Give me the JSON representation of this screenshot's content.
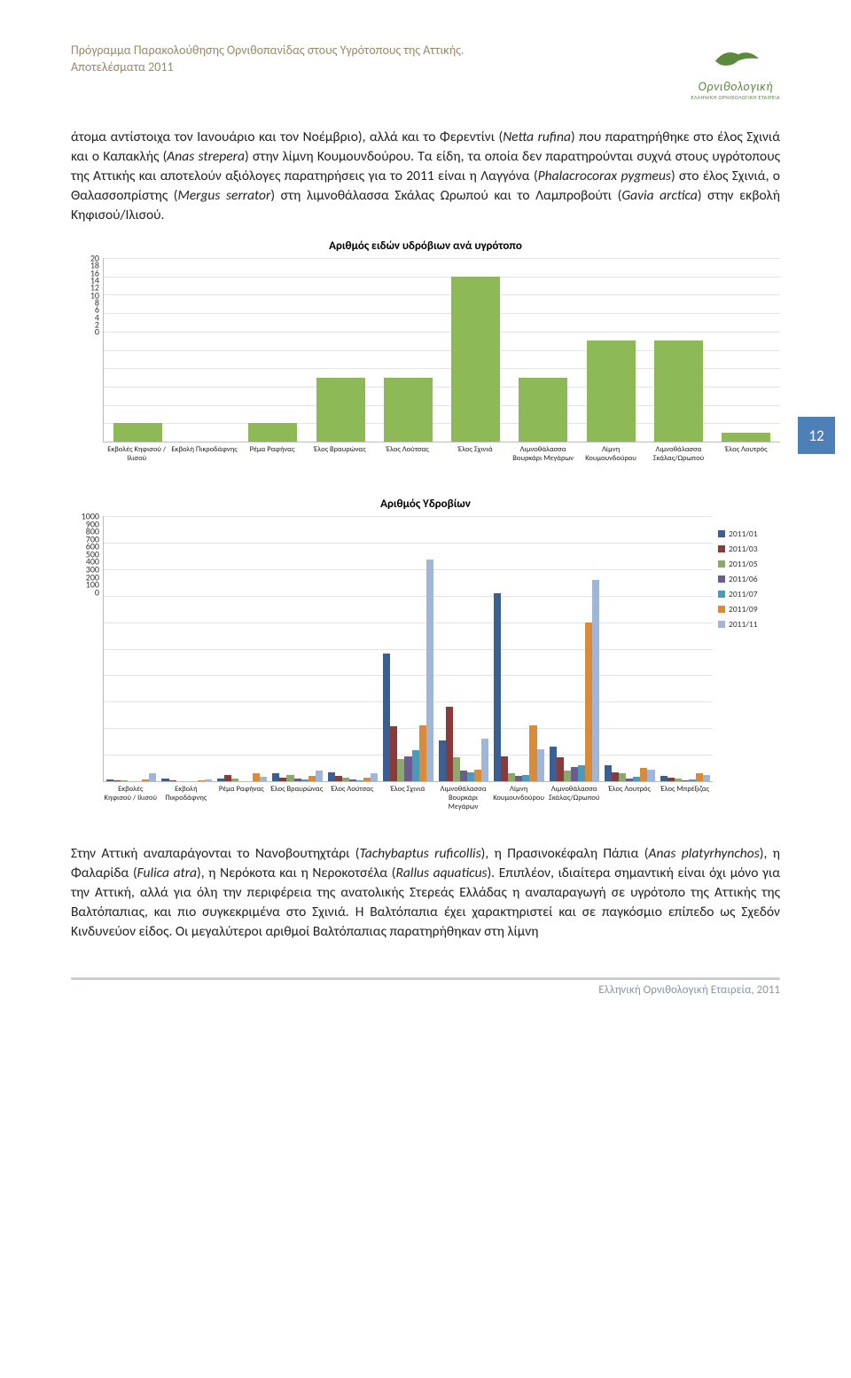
{
  "header": {
    "line1": "Πρόγραμμα Παρακολούθησης Ορνιθοπανίδας στους Υγρότοπους της Αττικής.",
    "line2": "Αποτελέσματα 2011",
    "logo_word": "Ορνιθολογική",
    "logo_sub": "ΕΛΛΗΝΙΚΗ ΟΡΝΙΘΟΛΟΓΙΚΗ ΕΤΑΙΡΕΙΑ",
    "logo_color": "#5b8a3f"
  },
  "page_number": "12",
  "badge_bg": "#4e80b8",
  "para1_html": "άτομα αντίστοιχα τον Ιανουάριο και τον Νοέμβριο), αλλά και το Φερεντίνι (<i>Netta rufina</i>) που παρατηρήθηκε στο έλος Σχινιά και ο Καπακλής (<i>Anas strepera</i>) στην λίμνη Κουμουνδούρου. Τα είδη, τα οποία δεν παρατηρούνται συχνά στους υγρότοπους της Αττικής και αποτελούν αξιόλογες παρατηρήσεις για το 2011 είναι η Λαγγόνα (<i>Phalacrocorax pygmeus</i>) στο έλος Σχινιά, ο Θαλασσοπρίστης (<i>Mergus serrator</i>) στη λιμνοθάλασσα Σκάλας Ωρωπού και το Λαμπροβούτι (<i>Gavia arctica</i>) στην εκβολή Κηφισού/Ιλισού.",
  "para2_html": "Στην Αττική αναπαράγονται το Νανοβουτηχτάρι (<i>Tachybaptus ruficollis</i>), η Πρασινοκέφαλη Πάπια (<i>Anas platyrhynchos</i>), η Φαλαρίδα (<i>Fulica atra</i>), η Νερόκοτα και η Νεροκοτσέλα (<i>Rallus aquaticus</i>). Επιπλέον, ιδιαίτερα σημαντική είναι όχι μόνο για την Αττική, αλλά για όλη την περιφέρεια της ανατολικής Στερεάς Ελλάδας η αναπαραγωγή σε υγρότοπο της Αττικής της Βαλτόπαπιας, και πιο συγκεκριμένα στο Σχινιά. Η Βαλτόπαπια έχει χαρακτηριστεί και σε παγκόσμιο επίπεδο ως Σχεδόν Κινδυνεύον είδος. Οι μεγαλύτεροι αριθμοί Βαλτόπαπιας παρατηρήθηκαν στη λίμνη",
  "chart1": {
    "title": "Αριθμός ειδών υδρόβιων ανά υγρότοπο",
    "ymax": 20,
    "ytick_step": 2,
    "bar_color": "#8db957",
    "grid_color": "#e4e4e4",
    "categories": [
      "Εκβολές Κηφισού / Ιλισού",
      "Εκβολή Πικροδάφνης",
      "Ρέμα Ραφήνας",
      "Έλος Βραυρώνας",
      "Έλος Λούτσας",
      "Έλος Σχινιά",
      "Λιμνοθάλασσα Βουρκάρι Μεγάρων",
      "Λίμνη Κουμουνδούρου",
      "Λιμνοθάλασσα Σκάλας/Ωρωπού",
      "Έλος Λουτρός"
    ],
    "values": [
      2,
      0,
      2,
      7,
      7,
      18,
      7,
      11,
      11,
      1
    ]
  },
  "chart2": {
    "title": "Αριθμός Υδροβίων",
    "ymax": 1000,
    "ytick_step": 100,
    "grid_color": "#e4e4e4",
    "categories": [
      "Εκβολές Κηφισού / Ιλισού",
      "Εκβολή Πικροδάφνης",
      "Ρέμα Ραφήνας",
      "Έλος Βραυρώνας",
      "Έλος Λούτσας",
      "Έλος Σχινιά",
      "Λιμνοθάλασσα Βουρκάρι Μεγάρων",
      "Λίμνη Κουμουνδούρου",
      "Λιμνοθάλασσα Σκάλας/Ωρωπού",
      "Έλος Λουτρός",
      "Έλος Μπρέξιζας"
    ],
    "series": [
      {
        "label": "2011/01",
        "color": "#3b5f93"
      },
      {
        "label": "2011/03",
        "color": "#8b3a3a"
      },
      {
        "label": "2011/05",
        "color": "#8ba96a"
      },
      {
        "label": "2011/06",
        "color": "#6a5c8f"
      },
      {
        "label": "2011/07",
        "color": "#4a9ab8"
      },
      {
        "label": "2011/09",
        "color": "#d98b3a"
      },
      {
        "label": "2011/11",
        "color": "#9fb6d9"
      }
    ],
    "data": [
      [
        8,
        4,
        2,
        0,
        0,
        6,
        30
      ],
      [
        10,
        5,
        0,
        0,
        0,
        3,
        8
      ],
      [
        10,
        25,
        10,
        0,
        0,
        30,
        18
      ],
      [
        30,
        15,
        25,
        10,
        8,
        20,
        40
      ],
      [
        35,
        20,
        12,
        8,
        5,
        15,
        30
      ],
      [
        480,
        208,
        85,
        95,
        118,
        210,
        835
      ],
      [
        155,
        280,
        90,
        40,
        35,
        45,
        160
      ],
      [
        710,
        95,
        30,
        20,
        25,
        210,
        120
      ],
      [
        130,
        90,
        40,
        55,
        60,
        600,
        760
      ],
      [
        60,
        35,
        30,
        10,
        18,
        50,
        45
      ],
      [
        20,
        15,
        10,
        5,
        8,
        30,
        22
      ]
    ]
  },
  "footer": {
    "text": "Ελληνική Ορνιθολογική Εταιρεία, 2011",
    "text_color": "#8a98a8"
  }
}
